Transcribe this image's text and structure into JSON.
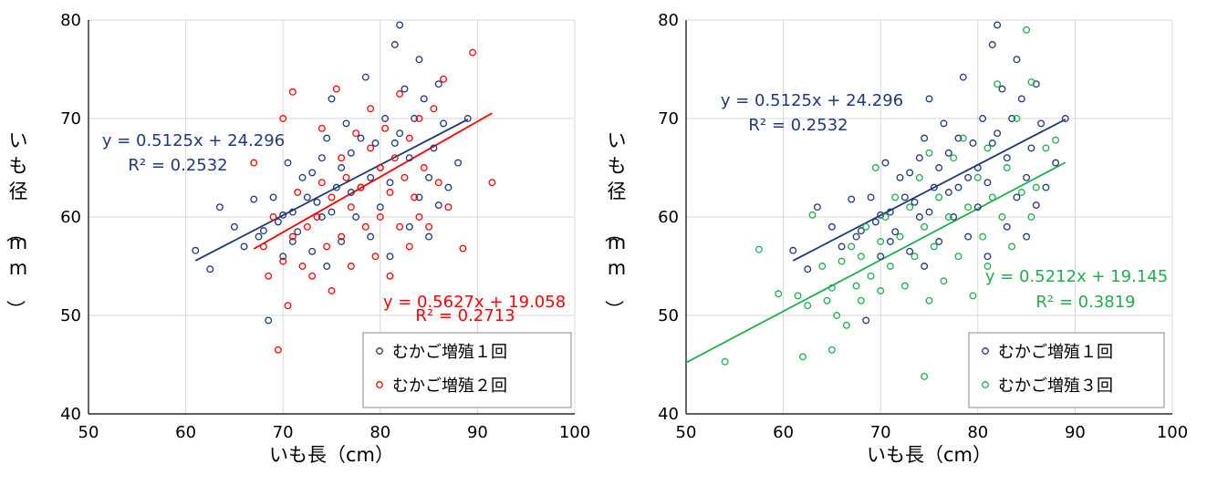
{
  "chart_data": [
    {
      "type": "scatter",
      "xlabel": "いも長（cm）",
      "ylabel": "いも径（mm）",
      "xlim": [
        50,
        100
      ],
      "ylim": [
        40,
        80
      ],
      "xticks": [
        "50",
        "60",
        "70",
        "80",
        "90",
        "100"
      ],
      "yticks": [
        "40",
        "50",
        "60",
        "70",
        "80"
      ],
      "grid": true,
      "legend_position": "bottom-right",
      "series": [
        {
          "name": "むかご増殖１回",
          "color": "#1f3a7a",
          "marker": "open-circle",
          "trendline": {
            "slope": 0.5125,
            "intercept": 24.296,
            "x_range": [
              61,
              89
            ]
          },
          "equation": "y = 0.5125x + 24.296",
          "r2": "R² = 0.2532",
          "points": [
            [
              61,
              56.6
            ],
            [
              62.5,
              54.7
            ],
            [
              63.5,
              61
            ],
            [
              65,
              59
            ],
            [
              66,
              57
            ],
            [
              67,
              61.8
            ],
            [
              67.5,
              58
            ],
            [
              68,
              58.6
            ],
            [
              68.5,
              49.5
            ],
            [
              69,
              62
            ],
            [
              69.5,
              59.5
            ],
            [
              70,
              60.2
            ],
            [
              70,
              56
            ],
            [
              70.5,
              65.5
            ],
            [
              71,
              57.5
            ],
            [
              71,
              60.5
            ],
            [
              71.5,
              58.5
            ],
            [
              72,
              64
            ],
            [
              72.5,
              62
            ],
            [
              73,
              56.5
            ],
            [
              73,
              64.5
            ],
            [
              73.5,
              61.5
            ],
            [
              74,
              60
            ],
            [
              74,
              66
            ],
            [
              74.5,
              68
            ],
            [
              74.5,
              55
            ],
            [
              75,
              72
            ],
            [
              75,
              60.5
            ],
            [
              75.5,
              63
            ],
            [
              76,
              65
            ],
            [
              76,
              57.5
            ],
            [
              76.5,
              69.5
            ],
            [
              77,
              62.5
            ],
            [
              77,
              66.5
            ],
            [
              77.5,
              60
            ],
            [
              78,
              63
            ],
            [
              78,
              68
            ],
            [
              78.5,
              74.2
            ],
            [
              79,
              58
            ],
            [
              79,
              64
            ],
            [
              79.5,
              67.5
            ],
            [
              80,
              61
            ],
            [
              80,
              65
            ],
            [
              80.5,
              70
            ],
            [
              81,
              56
            ],
            [
              81,
              63.5
            ],
            [
              81.5,
              67.5
            ],
            [
              81.5,
              77.5
            ],
            [
              82,
              79.5
            ],
            [
              82,
              68.5
            ],
            [
              82.5,
              73
            ],
            [
              83,
              66
            ],
            [
              83,
              59
            ],
            [
              83.5,
              70
            ],
            [
              84,
              76
            ],
            [
              84,
              62
            ],
            [
              84.5,
              72
            ],
            [
              85,
              64
            ],
            [
              85,
              58
            ],
            [
              85.5,
              67
            ],
            [
              86,
              61.2
            ],
            [
              86,
              73.5
            ],
            [
              86.5,
              69.5
            ],
            [
              87,
              63
            ],
            [
              88,
              65.5
            ],
            [
              89,
              70
            ]
          ]
        },
        {
          "name": "むかご増殖２回",
          "color": "#ff0000",
          "marker": "open-circle",
          "trendline": {
            "slope": 0.5627,
            "intercept": 19.058,
            "x_range": [
              67,
              91.5
            ]
          },
          "equation": "y = 0.5627x + 19.058",
          "r2": "R² = 0.2713",
          "points": [
            [
              67,
              65.5
            ],
            [
              68,
              57
            ],
            [
              68.5,
              54
            ],
            [
              69,
              60
            ],
            [
              69.5,
              46.5
            ],
            [
              70,
              70
            ],
            [
              70,
              55.5
            ],
            [
              70.5,
              51
            ],
            [
              71,
              72.7
            ],
            [
              71,
              58
            ],
            [
              71.5,
              62.5
            ],
            [
              72,
              55
            ],
            [
              72.5,
              59
            ],
            [
              73,
              54
            ],
            [
              73.5,
              60
            ],
            [
              74,
              63.5
            ],
            [
              74,
              69
            ],
            [
              74.5,
              57
            ],
            [
              75,
              62
            ],
            [
              75,
              52.5
            ],
            [
              75.5,
              73
            ],
            [
              76,
              66
            ],
            [
              76,
              58
            ],
            [
              76.5,
              64
            ],
            [
              77,
              61
            ],
            [
              77,
              55
            ],
            [
              77.5,
              68.5
            ],
            [
              78,
              63
            ],
            [
              78.5,
              59
            ],
            [
              79,
              67
            ],
            [
              79,
              71
            ],
            [
              79.5,
              56
            ],
            [
              80,
              65
            ],
            [
              80,
              60
            ],
            [
              80.5,
              69
            ],
            [
              81,
              62.5
            ],
            [
              81,
              54
            ],
            [
              81.5,
              66
            ],
            [
              82,
              72.5
            ],
            [
              82,
              59
            ],
            [
              82.5,
              64
            ],
            [
              83,
              68
            ],
            [
              83,
              57
            ],
            [
              83.5,
              62
            ],
            [
              84,
              70
            ],
            [
              84,
              60
            ],
            [
              84.5,
              65
            ],
            [
              85,
              59
            ],
            [
              85.5,
              71
            ],
            [
              86,
              63.5
            ],
            [
              86.5,
              74
            ],
            [
              87,
              61
            ],
            [
              88.5,
              56.8
            ],
            [
              89.5,
              76.7
            ],
            [
              91.5,
              63.5
            ]
          ]
        }
      ]
    },
    {
      "type": "scatter",
      "xlabel": "いも長（cm）",
      "ylabel": "いも径（mm）",
      "xlim": [
        50,
        100
      ],
      "ylim": [
        40,
        80
      ],
      "xticks": [
        "50",
        "60",
        "70",
        "80",
        "90",
        "100"
      ],
      "yticks": [
        "40",
        "50",
        "60",
        "70",
        "80"
      ],
      "grid": true,
      "legend_position": "bottom-right",
      "series": [
        {
          "name": "むかご増殖１回",
          "color": "#1f3a7a",
          "marker": "open-circle",
          "trendline": {
            "slope": 0.5125,
            "intercept": 24.296,
            "x_range": [
              61,
              89
            ]
          },
          "equation": "y = 0.5125x + 24.296",
          "r2": "R² = 0.2532",
          "points": [
            [
              61,
              56.6
            ],
            [
              62.5,
              54.7
            ],
            [
              63.5,
              61
            ],
            [
              65,
              59
            ],
            [
              66,
              57
            ],
            [
              67,
              61.8
            ],
            [
              67.5,
              58
            ],
            [
              68,
              58.6
            ],
            [
              68.5,
              49.5
            ],
            [
              69,
              62
            ],
            [
              69.5,
              59.5
            ],
            [
              70,
              60.2
            ],
            [
              70,
              56
            ],
            [
              70.5,
              65.5
            ],
            [
              71,
              57.5
            ],
            [
              71,
              60.5
            ],
            [
              71.5,
              58.5
            ],
            [
              72,
              64
            ],
            [
              72.5,
              62
            ],
            [
              73,
              56.5
            ],
            [
              73,
              64.5
            ],
            [
              73.5,
              61.5
            ],
            [
              74,
              60
            ],
            [
              74,
              66
            ],
            [
              74.5,
              68
            ],
            [
              74.5,
              55
            ],
            [
              75,
              72
            ],
            [
              75,
              60.5
            ],
            [
              75.5,
              63
            ],
            [
              76,
              65
            ],
            [
              76,
              57.5
            ],
            [
              76.5,
              69.5
            ],
            [
              77,
              62.5
            ],
            [
              77,
              66.5
            ],
            [
              77.5,
              60
            ],
            [
              78,
              63
            ],
            [
              78,
              68
            ],
            [
              78.5,
              74.2
            ],
            [
              79,
              58
            ],
            [
              79,
              64
            ],
            [
              79.5,
              67.5
            ],
            [
              80,
              61
            ],
            [
              80,
              65
            ],
            [
              80.5,
              70
            ],
            [
              81,
              56
            ],
            [
              81,
              63.5
            ],
            [
              81.5,
              67.5
            ],
            [
              81.5,
              77.5
            ],
            [
              82,
              79.5
            ],
            [
              82,
              68.5
            ],
            [
              82.5,
              73
            ],
            [
              83,
              66
            ],
            [
              83,
              59
            ],
            [
              83.5,
              70
            ],
            [
              84,
              76
            ],
            [
              84,
              62
            ],
            [
              84.5,
              72
            ],
            [
              85,
              64
            ],
            [
              85,
              58
            ],
            [
              85.5,
              67
            ],
            [
              86,
              61.2
            ],
            [
              86,
              73.5
            ],
            [
              86.5,
              69.5
            ],
            [
              87,
              63
            ],
            [
              88,
              65.5
            ],
            [
              89,
              70
            ]
          ]
        },
        {
          "name": "むかご増殖３回",
          "color": "#1fae4e",
          "marker": "open-circle",
          "trendline": {
            "slope": 0.5212,
            "intercept": 19.145,
            "x_range": [
              50,
              89
            ]
          },
          "equation": "y = 0.5212x + 19.145",
          "r2": "R² = 0.3819",
          "points": [
            [
              54,
              45.3
            ],
            [
              57.5,
              56.7
            ],
            [
              59.5,
              52.2
            ],
            [
              61.5,
              52
            ],
            [
              62,
              45.8
            ],
            [
              62.5,
              51
            ],
            [
              63,
              60.2
            ],
            [
              64,
              55
            ],
            [
              64.5,
              51.5
            ],
            [
              65,
              46.5
            ],
            [
              65,
              52.8
            ],
            [
              65.5,
              50
            ],
            [
              66,
              55.5
            ],
            [
              66.5,
              49
            ],
            [
              67,
              57
            ],
            [
              67.5,
              53
            ],
            [
              68,
              56
            ],
            [
              68,
              51.5
            ],
            [
              68.5,
              59
            ],
            [
              69,
              54
            ],
            [
              69.5,
              65
            ],
            [
              70,
              57.5
            ],
            [
              70,
              52.5
            ],
            [
              70.5,
              60
            ],
            [
              71,
              55
            ],
            [
              71.5,
              62
            ],
            [
              72,
              58
            ],
            [
              72.5,
              53
            ],
            [
              73,
              61
            ],
            [
              73.5,
              56
            ],
            [
              74,
              64
            ],
            [
              74.5,
              43.8
            ],
            [
              74.5,
              59
            ],
            [
              75,
              51.5
            ],
            [
              75,
              66.5
            ],
            [
              75.5,
              57
            ],
            [
              76,
              62
            ],
            [
              76.5,
              53.5
            ],
            [
              77,
              60
            ],
            [
              77.5,
              66
            ],
            [
              78,
              56
            ],
            [
              78.5,
              68
            ],
            [
              79,
              61
            ],
            [
              79.5,
              52
            ],
            [
              80,
              64
            ],
            [
              80.5,
              58
            ],
            [
              81,
              67
            ],
            [
              81,
              55
            ],
            [
              81.5,
              62
            ],
            [
              82,
              73.5
            ],
            [
              82.5,
              60
            ],
            [
              83,
              65
            ],
            [
              83.5,
              57
            ],
            [
              84,
              70
            ],
            [
              84.5,
              62.5
            ],
            [
              85,
              79
            ],
            [
              85.5,
              73.7
            ],
            [
              85.5,
              60
            ],
            [
              86,
              63
            ],
            [
              87,
              67
            ],
            [
              88,
              67.8
            ]
          ]
        }
      ]
    }
  ]
}
